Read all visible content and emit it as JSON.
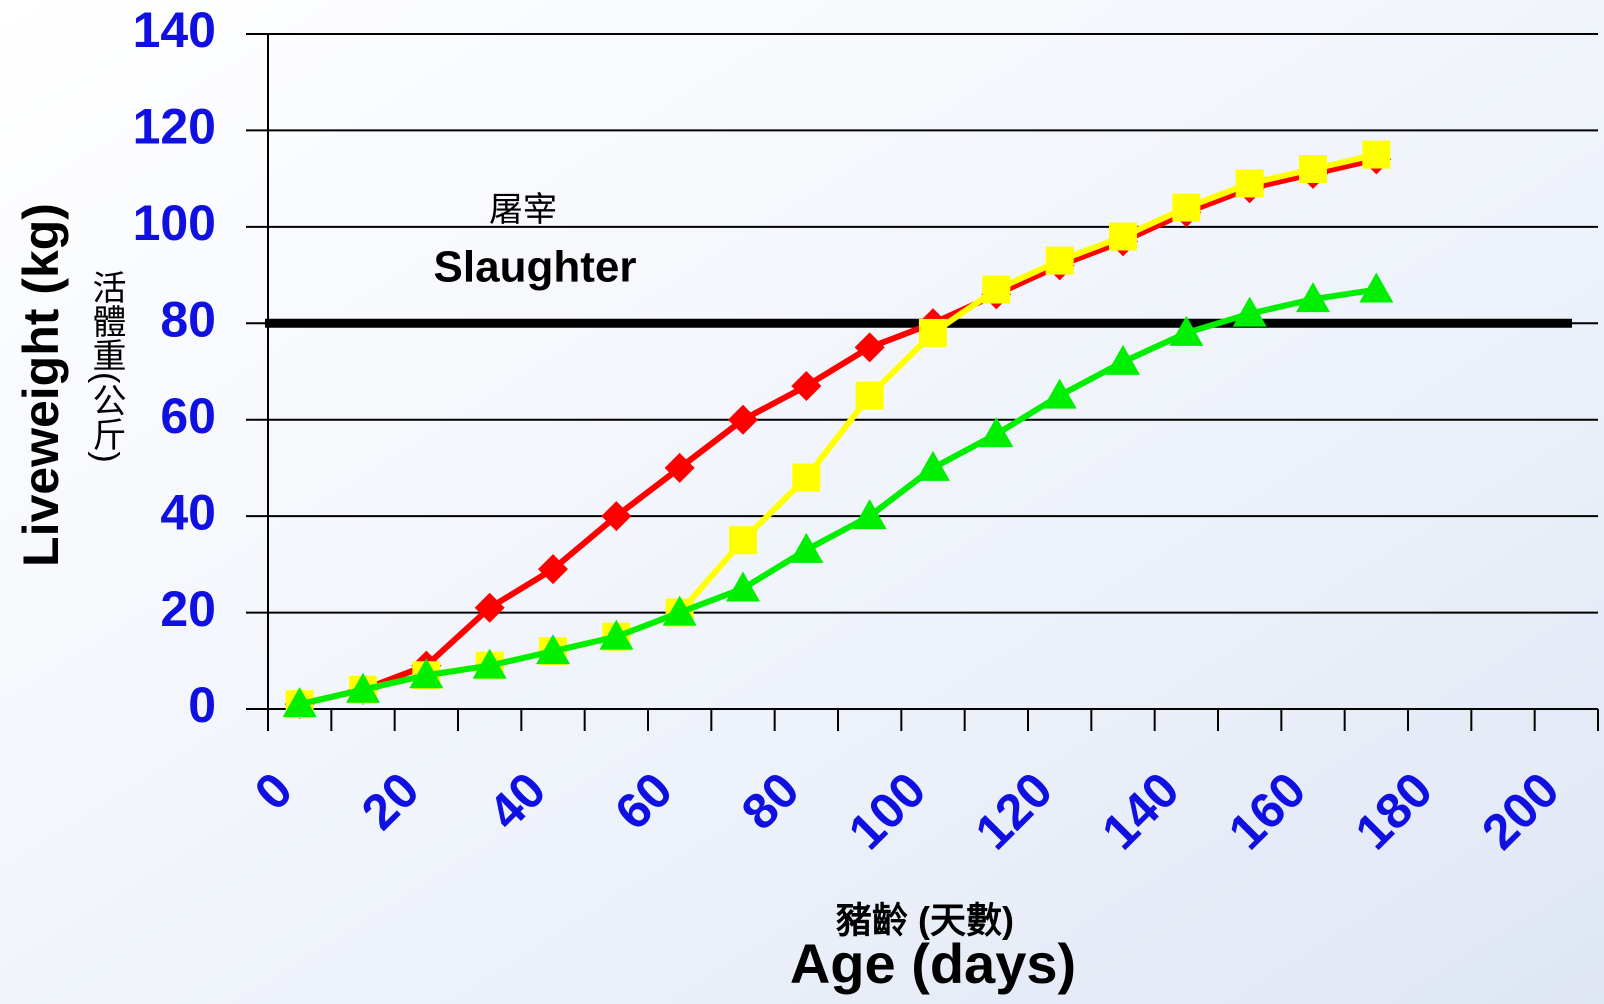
{
  "chart_data": {
    "type": "line",
    "annotations": [
      "屠宰",
      "Slaughter"
    ],
    "y_label": "Liveweight (kg)",
    "y_label_zh": "活體重(公斤)",
    "x_label_zh": "豬齡 (天數)",
    "x_label": "Age (days)",
    "x": [
      5,
      15,
      25,
      35,
      45,
      55,
      65,
      75,
      85,
      95,
      105,
      115,
      125,
      135,
      145,
      155,
      165,
      175
    ],
    "series": [
      {
        "color": "#ff0000",
        "marker": "diamond",
        "values": [
          1,
          4,
          9,
          21,
          29,
          40,
          50,
          60,
          67,
          75,
          80,
          86,
          92,
          97,
          103,
          108,
          111,
          114
        ]
      },
      {
        "color": "#ffff00",
        "marker": "square",
        "values": [
          1,
          4,
          7,
          9,
          12,
          15,
          20,
          35,
          48,
          65,
          78,
          87,
          93,
          98,
          104,
          109,
          112,
          115
        ]
      },
      {
        "color": "#00ee00",
        "marker": "triangle",
        "values": [
          1,
          4,
          7,
          9,
          12,
          15,
          20,
          25,
          33,
          40,
          50,
          57,
          65,
          72,
          78,
          82,
          85,
          87
        ]
      }
    ],
    "reference_line": {
      "value": 80,
      "color": "#000000"
    },
    "xlim": [
      0,
      210
    ],
    "xticks": [
      0,
      20,
      40,
      60,
      80,
      100,
      120,
      140,
      160,
      180,
      200
    ],
    "xminor_ticks": [
      10,
      30,
      50,
      70,
      90,
      110,
      130,
      150,
      170,
      190,
      210
    ],
    "ylim": [
      0,
      140
    ],
    "yticks": [
      0,
      20,
      40,
      60,
      80,
      100,
      120,
      140
    ],
    "grid": true
  }
}
